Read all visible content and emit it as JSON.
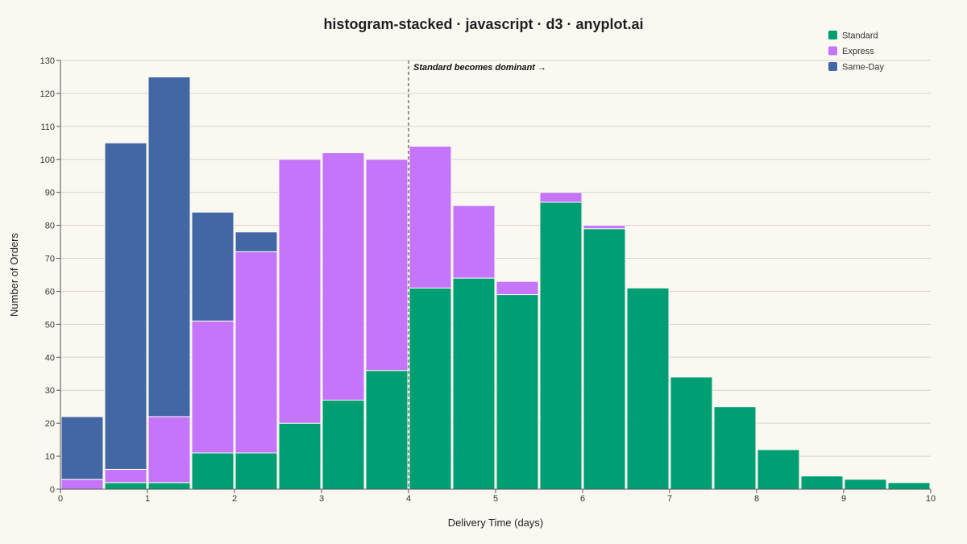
{
  "chart_data": {
    "type": "bar",
    "title": "histogram-stacked · javascript · d3 · anyplot.ai",
    "xlabel": "Delivery Time (days)",
    "ylabel": "Number of Orders",
    "xlim": [
      0,
      10
    ],
    "ylim": [
      0,
      130
    ],
    "x_ticks": [
      "0",
      "1",
      "2",
      "3",
      "4",
      "5",
      "6",
      "7",
      "8",
      "9",
      "10"
    ],
    "y_ticks": [
      "0",
      "10",
      "20",
      "30",
      "40",
      "50",
      "60",
      "70",
      "80",
      "90",
      "100",
      "110",
      "120",
      "130"
    ],
    "grid": true,
    "legend_placement": "top-right",
    "bin_edges": [
      0,
      0.5,
      1,
      1.5,
      2,
      2.5,
      3,
      3.5,
      4,
      4.5,
      5,
      5.5,
      6,
      6.5,
      7,
      7.5,
      8,
      8.5,
      9,
      9.5,
      10
    ],
    "series": [
      {
        "name": "Standard",
        "color": "#009E73",
        "values": [
          0,
          2,
          2,
          11,
          11,
          20,
          27,
          36,
          61,
          64,
          59,
          87,
          79,
          61,
          34,
          25,
          12,
          4,
          3,
          2
        ]
      },
      {
        "name": "Express",
        "color": "#C475F9",
        "values": [
          3,
          4,
          20,
          40,
          61,
          80,
          75,
          64,
          43,
          22,
          4,
          3,
          1,
          0,
          0,
          0,
          0,
          0,
          0,
          0
        ]
      },
      {
        "name": "Same-Day",
        "color": "#4367A5",
        "values": [
          19,
          99,
          103,
          33,
          6,
          0,
          0,
          0,
          0,
          0,
          0,
          0,
          0,
          0,
          0,
          0,
          0,
          0,
          0,
          0
        ]
      }
    ],
    "annotation": {
      "text": "Standard becomes dominant →",
      "x": 4
    }
  }
}
